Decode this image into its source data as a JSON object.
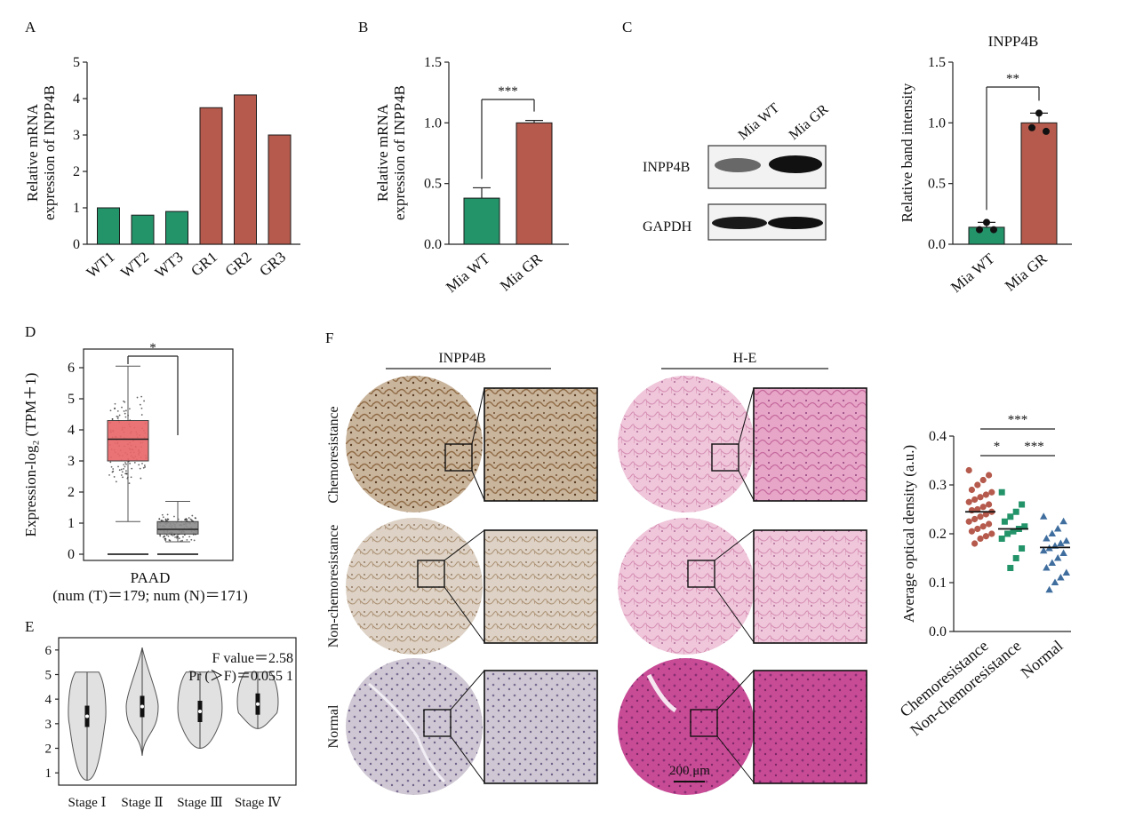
{
  "colors": {
    "green": "#23936a",
    "red": "#b55a4c",
    "blue": "#3f6e9e",
    "box_red": "#e8686a",
    "box_grey": "#8e8e8e"
  },
  "panel_letters": {
    "A": "A",
    "B": "B",
    "C": "C",
    "D": "D",
    "E": "E",
    "F": "F"
  },
  "panelC_blot": {
    "col_labels": [
      "Mia WT",
      "Mia GR"
    ],
    "row_labels": [
      "INPP4B",
      "GAPDH"
    ]
  },
  "panelF_images": {
    "col_headers": [
      "INPP4B",
      "H-E"
    ],
    "row_labels": [
      "Chemoresistance",
      "Non-chemoresistance",
      "Normal"
    ],
    "scale_bar": "200 μm"
  },
  "chart_data": [
    {
      "id": "A",
      "type": "bar",
      "categories": [
        "WT1",
        "WT2",
        "WT3",
        "GR1",
        "GR2",
        "GR3"
      ],
      "values": [
        1.0,
        0.8,
        0.9,
        3.75,
        4.1,
        3.0
      ],
      "bar_colors": [
        "green",
        "green",
        "green",
        "red",
        "red",
        "red"
      ],
      "ylabel_lines": [
        "Relative mRNA",
        "expression of INPP4B"
      ],
      "ylim": [
        0,
        5
      ],
      "yticks": [
        "0",
        "1",
        "2",
        "3",
        "4",
        "5"
      ]
    },
    {
      "id": "B",
      "type": "bar",
      "categories": [
        "Mia WT",
        "Mia GR"
      ],
      "values": [
        0.38,
        1.0
      ],
      "errors": [
        0.085,
        0.02
      ],
      "bar_colors": [
        "green",
        "red"
      ],
      "ylabel_lines": [
        "Relative mRNA",
        "expression of INPP4B"
      ],
      "ylim": [
        0,
        1.5
      ],
      "yticks": [
        "0.0",
        "0.5",
        "1.0",
        "1.5"
      ],
      "significance": "***"
    },
    {
      "id": "C",
      "type": "bar",
      "title": "INPP4B",
      "categories": [
        "Mia WT",
        "Mia GR"
      ],
      "values": [
        0.14,
        1.0
      ],
      "errors": [
        0.04,
        0.08
      ],
      "points": [
        [
          0.12,
          0.18,
          0.12
        ],
        [
          0.96,
          1.08,
          0.93
        ]
      ],
      "bar_colors": [
        "green",
        "red"
      ],
      "ylabel": "Relative band intensity",
      "ylim": [
        0,
        1.5
      ],
      "yticks": [
        "0.0",
        "0.5",
        "1.0",
        "1.5"
      ],
      "significance": "**"
    },
    {
      "id": "D",
      "type": "box",
      "ylabel": "Expression-log₂ (TPM＋1)",
      "xlabel_lines": [
        "PAAD",
        "(num (T)＝179; num (N)＝171)"
      ],
      "ylim": [
        0,
        6
      ],
      "yticks": [
        "0",
        "1",
        "2",
        "3",
        "4",
        "5",
        "6"
      ],
      "boxes": [
        {
          "name": "T",
          "q1": 3.0,
          "median": 3.7,
          "q3": 4.3,
          "whisker_low": 1.05,
          "whisker_high": 6.05,
          "color": "box_red"
        },
        {
          "name": "N",
          "q1": 0.65,
          "median": 0.8,
          "q3": 1.05,
          "whisker_low": 0.4,
          "whisker_high": 1.7,
          "color": "box_grey"
        }
      ],
      "significance": "*"
    },
    {
      "id": "E",
      "type": "violin",
      "categories": [
        "Stage Ⅰ",
        "Stage Ⅱ",
        "Stage Ⅲ",
        "Stage Ⅳ"
      ],
      "ranges": [
        [
          0.7,
          5.1
        ],
        [
          1.7,
          6.1
        ],
        [
          2.0,
          5.1
        ],
        [
          2.8,
          5.1
        ]
      ],
      "medians": [
        3.3,
        3.7,
        3.5,
        3.8
      ],
      "ylim": [
        0.5,
        6.5
      ],
      "yticks": [
        "1",
        "2",
        "3",
        "4",
        "5",
        "6"
      ],
      "annotation_lines": [
        "F value＝2.58",
        "Pr (＞F)＝0.055 1"
      ]
    },
    {
      "id": "F",
      "type": "scatter",
      "categories": [
        "Chemoresistance",
        "Non-chemoresistance",
        "Normal"
      ],
      "means": [
        0.245,
        0.21,
        0.172
      ],
      "marker_colors": [
        "red",
        "green",
        "blue"
      ],
      "markers": [
        "circle",
        "square",
        "triangle"
      ],
      "points": [
        [
          0.33,
          0.32,
          0.31,
          0.3,
          0.29,
          0.285,
          0.28,
          0.275,
          0.27,
          0.265,
          0.26,
          0.255,
          0.25,
          0.248,
          0.245,
          0.24,
          0.235,
          0.23,
          0.225,
          0.22,
          0.215,
          0.21,
          0.205,
          0.2,
          0.195,
          0.19,
          0.18
        ],
        [
          0.285,
          0.26,
          0.245,
          0.235,
          0.225,
          0.215,
          0.21,
          0.205,
          0.2,
          0.19,
          0.17,
          0.15,
          0.13
        ],
        [
          0.235,
          0.225,
          0.21,
          0.2,
          0.19,
          0.185,
          0.18,
          0.175,
          0.17,
          0.165,
          0.16,
          0.15,
          0.14,
          0.13,
          0.12,
          0.11,
          0.1,
          0.085
        ]
      ],
      "ylabel": "Average optical density (a.u.)",
      "ylim": [
        0,
        0.4
      ],
      "yticks": [
        "0.0",
        "0.1",
        "0.2",
        "0.3",
        "0.4"
      ],
      "significance": [
        {
          "pair": [
            0,
            1
          ],
          "label": "*"
        },
        {
          "pair": [
            1,
            2
          ],
          "label": "***"
        },
        {
          "pair": [
            0,
            2
          ],
          "label": "***"
        }
      ]
    }
  ]
}
